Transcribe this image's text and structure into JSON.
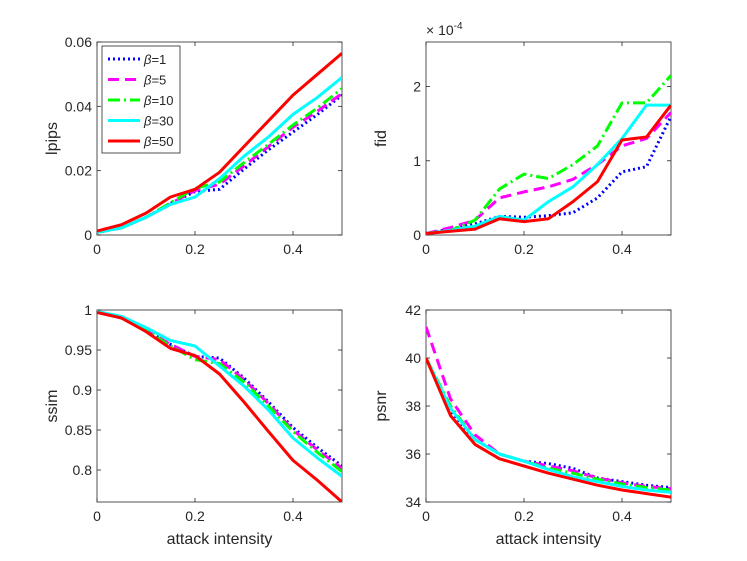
{
  "chart_data": [
    {
      "type": "line",
      "panel": "top-left",
      "xlabel": "",
      "ylabel": "lpips",
      "xlim": [
        0,
        0.5
      ],
      "ylim": [
        0,
        0.06
      ],
      "xticks": [
        0,
        0.2,
        0.4
      ],
      "xtick_labels": [
        "0",
        "0.2",
        "0.4"
      ],
      "yticks": [
        0,
        0.02,
        0.04,
        0.06
      ],
      "ytick_labels": [
        "0",
        "0.02",
        "0.04",
        "0.06"
      ],
      "exponent_label": "",
      "legend": true,
      "legend_placement": "top-left",
      "x": [
        0,
        0.05,
        0.1,
        0.15,
        0.2,
        0.25,
        0.3,
        0.35,
        0.4,
        0.45,
        0.5
      ],
      "series": [
        {
          "name": "β=1",
          "values": [
            0.0008,
            0.0022,
            0.0055,
            0.0098,
            0.0135,
            0.0142,
            0.0205,
            0.0265,
            0.032,
            0.0375,
            0.0435
          ]
        },
        {
          "name": "β=5",
          "values": [
            0.0008,
            0.0022,
            0.0055,
            0.0098,
            0.0138,
            0.0158,
            0.0215,
            0.0275,
            0.0335,
            0.0385,
            0.044
          ]
        },
        {
          "name": "β=10",
          "values": [
            0.0008,
            0.0022,
            0.0055,
            0.01,
            0.0145,
            0.0165,
            0.0225,
            0.0282,
            0.0342,
            0.0395,
            0.0455
          ]
        },
        {
          "name": "β=30",
          "values": [
            0.0008,
            0.0022,
            0.0055,
            0.0095,
            0.0118,
            0.0175,
            0.0245,
            0.0305,
            0.0375,
            0.0428,
            0.049
          ]
        },
        {
          "name": "β=50",
          "values": [
            0.0012,
            0.0032,
            0.0068,
            0.0118,
            0.0142,
            0.0195,
            0.0275,
            0.0355,
            0.0435,
            0.05,
            0.0565
          ]
        }
      ]
    },
    {
      "type": "line",
      "panel": "top-right",
      "xlabel": "",
      "ylabel": "fid",
      "xlim": [
        0,
        0.5
      ],
      "ylim": [
        0,
        2.6
      ],
      "xticks": [
        0,
        0.2,
        0.4
      ],
      "xtick_labels": [
        "0",
        "0.2",
        "0.4"
      ],
      "yticks": [
        0,
        1,
        2
      ],
      "ytick_labels": [
        "0",
        "1",
        "2"
      ],
      "exponent_label": "× 10",
      "exponent_power": "-4",
      "legend": false,
      "x": [
        0,
        0.05,
        0.1,
        0.15,
        0.2,
        0.25,
        0.3,
        0.35,
        0.4,
        0.45,
        0.5
      ],
      "series": [
        {
          "name": "β=1",
          "values": [
            0.02,
            0.08,
            0.15,
            0.25,
            0.24,
            0.26,
            0.3,
            0.5,
            0.85,
            0.92,
            1.6
          ]
        },
        {
          "name": "β=5",
          "values": [
            0.02,
            0.1,
            0.2,
            0.5,
            0.58,
            0.65,
            0.75,
            0.95,
            1.2,
            1.3,
            1.65
          ]
        },
        {
          "name": "β=10",
          "values": [
            0.02,
            0.06,
            0.2,
            0.62,
            0.82,
            0.76,
            0.95,
            1.2,
            1.78,
            1.78,
            2.15
          ]
        },
        {
          "name": "β=30",
          "values": [
            0.02,
            0.06,
            0.12,
            0.25,
            0.2,
            0.45,
            0.65,
            0.95,
            1.3,
            1.75,
            1.75
          ]
        },
        {
          "name": "β=50",
          "values": [
            0.02,
            0.05,
            0.08,
            0.22,
            0.18,
            0.22,
            0.45,
            0.72,
            1.28,
            1.32,
            1.75
          ]
        }
      ]
    },
    {
      "type": "line",
      "panel": "bottom-left",
      "xlabel": "attack intensity",
      "ylabel": "ssim",
      "xlim": [
        0,
        0.5
      ],
      "ylim": [
        0.76,
        1.0
      ],
      "xticks": [
        0,
        0.2,
        0.4
      ],
      "xtick_labels": [
        "0",
        "0.2",
        "0.4"
      ],
      "yticks": [
        0.8,
        0.85,
        0.9,
        0.95,
        1.0
      ],
      "ytick_labels": [
        "0.8",
        "0.85",
        "0.9",
        "0.95",
        "1"
      ],
      "exponent_label": "",
      "legend": false,
      "x": [
        0,
        0.05,
        0.1,
        0.15,
        0.2,
        0.25,
        0.3,
        0.35,
        0.4,
        0.45,
        0.5
      ],
      "series": [
        {
          "name": "β=1",
          "values": [
            0.998,
            0.99,
            0.975,
            0.957,
            0.942,
            0.94,
            0.915,
            0.885,
            0.853,
            0.828,
            0.805
          ]
        },
        {
          "name": "β=5",
          "values": [
            0.998,
            0.99,
            0.975,
            0.957,
            0.942,
            0.938,
            0.913,
            0.883,
            0.85,
            0.825,
            0.802
          ]
        },
        {
          "name": "β=10",
          "values": [
            0.998,
            0.99,
            0.975,
            0.955,
            0.938,
            0.933,
            0.91,
            0.88,
            0.848,
            0.822,
            0.798
          ]
        },
        {
          "name": "β=30",
          "values": [
            0.998,
            0.992,
            0.978,
            0.962,
            0.955,
            0.93,
            0.905,
            0.875,
            0.84,
            0.815,
            0.792
          ]
        },
        {
          "name": "β=50",
          "values": [
            0.997,
            0.99,
            0.973,
            0.952,
            0.943,
            0.92,
            0.885,
            0.848,
            0.812,
            0.787,
            0.76
          ]
        }
      ]
    },
    {
      "type": "line",
      "panel": "bottom-right",
      "xlabel": "attack intensity",
      "ylabel": "psnr",
      "xlim": [
        0,
        0.5
      ],
      "ylim": [
        34,
        42
      ],
      "xticks": [
        0,
        0.2,
        0.4
      ],
      "xtick_labels": [
        "0",
        "0.2",
        "0.4"
      ],
      "yticks": [
        34,
        36,
        38,
        40,
        42
      ],
      "ytick_labels": [
        "34",
        "36",
        "38",
        "40",
        "42"
      ],
      "exponent_label": "",
      "legend": false,
      "x": [
        0,
        0.05,
        0.1,
        0.15,
        0.2,
        0.25,
        0.3,
        0.35,
        0.4,
        0.45,
        0.5
      ],
      "series": [
        {
          "name": "β=1",
          "values": [
            40.0,
            37.8,
            36.6,
            36.0,
            35.7,
            35.6,
            35.4,
            35.0,
            34.85,
            34.7,
            34.6
          ]
        },
        {
          "name": "β=5",
          "values": [
            41.3,
            38.3,
            36.8,
            36.0,
            35.7,
            35.5,
            35.3,
            35.0,
            34.8,
            34.65,
            34.55
          ]
        },
        {
          "name": "β=10",
          "values": [
            40.0,
            38.0,
            36.6,
            36.0,
            35.7,
            35.4,
            35.2,
            34.95,
            34.75,
            34.6,
            34.5
          ]
        },
        {
          "name": "β=30",
          "values": [
            40.0,
            37.9,
            36.6,
            36.0,
            35.7,
            35.35,
            35.05,
            34.85,
            34.65,
            34.5,
            34.4
          ]
        },
        {
          "name": "β=50",
          "values": [
            40.0,
            37.6,
            36.4,
            35.8,
            35.5,
            35.2,
            34.95,
            34.7,
            34.5,
            34.35,
            34.2
          ]
        }
      ]
    }
  ],
  "styles": {
    "series_colors": [
      "#0000ff",
      "#ff00ff",
      "#00ff00",
      "#00ffff",
      "#ff0000"
    ],
    "series_dash": [
      "2,3",
      "11,6",
      "12,4,2,4",
      "",
      ""
    ],
    "axis_color": "#262626"
  }
}
